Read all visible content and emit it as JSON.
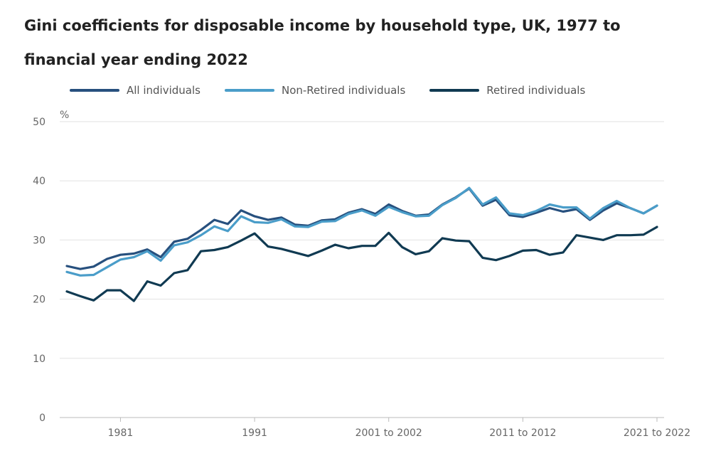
{
  "title": "Gini coefficients for disposable income by household type, UK, 1977 to financial year ending 2022",
  "chart_data": {
    "type": "line",
    "title": "Gini coefficients for disposable income by household type, UK, 1977 to financial year ending 2022",
    "ylabel": "%",
    "ylim": [
      0,
      50
    ],
    "yticks": [
      0,
      10,
      20,
      30,
      40,
      50
    ],
    "grid": true,
    "legend_position": "top",
    "x_tick_labels": [
      "1981",
      "1991",
      "2001 to 2002",
      "2011 to 2012",
      "2021 to 2022"
    ],
    "x_tick_index": [
      4,
      14,
      24,
      34,
      44
    ],
    "x_count": 45,
    "series": [
      {
        "name": "All individuals",
        "color": "#27507e",
        "values": [
          25.6,
          25.1,
          25.5,
          26.8,
          27.5,
          27.7,
          28.4,
          27.1,
          29.7,
          30.2,
          31.7,
          33.4,
          32.7,
          35.0,
          34.0,
          33.4,
          33.8,
          32.6,
          32.4,
          33.3,
          33.5,
          34.6,
          35.2,
          34.4,
          36.0,
          34.9,
          34.1,
          34.3,
          36.0,
          37.2,
          38.7,
          35.8,
          36.8,
          34.2,
          33.9,
          34.6,
          35.4,
          34.8,
          35.2,
          33.4,
          35.0,
          36.2,
          35.4,
          34.5,
          35.8
        ]
      },
      {
        "name": "Non-Retired individuals",
        "color": "#4a9dc9",
        "values": [
          24.6,
          24.0,
          24.1,
          25.4,
          26.7,
          27.1,
          28.1,
          26.5,
          29.1,
          29.6,
          30.8,
          32.3,
          31.5,
          34.0,
          33.0,
          32.9,
          33.5,
          32.3,
          32.2,
          33.1,
          33.2,
          34.4,
          35.0,
          34.1,
          35.6,
          34.7,
          34.0,
          34.1,
          35.9,
          37.1,
          38.8,
          36.0,
          37.2,
          34.5,
          34.2,
          34.9,
          36.0,
          35.5,
          35.5,
          33.6,
          35.4,
          36.6,
          35.4,
          34.5,
          35.8
        ]
      },
      {
        "name": "Retired individuals",
        "color": "#103a52",
        "values": [
          21.3,
          20.5,
          19.8,
          21.5,
          21.5,
          19.7,
          23.0,
          22.3,
          24.4,
          24.9,
          28.1,
          28.3,
          28.8,
          29.9,
          31.1,
          28.9,
          28.5,
          27.9,
          27.3,
          28.2,
          29.2,
          28.6,
          29.0,
          29.0,
          31.2,
          28.8,
          27.6,
          28.1,
          30.3,
          29.9,
          29.8,
          27.0,
          26.6,
          27.3,
          28.2,
          28.3,
          27.5,
          27.9,
          30.8,
          30.4,
          30.0,
          30.8,
          30.8,
          30.9,
          32.2
        ]
      }
    ]
  }
}
